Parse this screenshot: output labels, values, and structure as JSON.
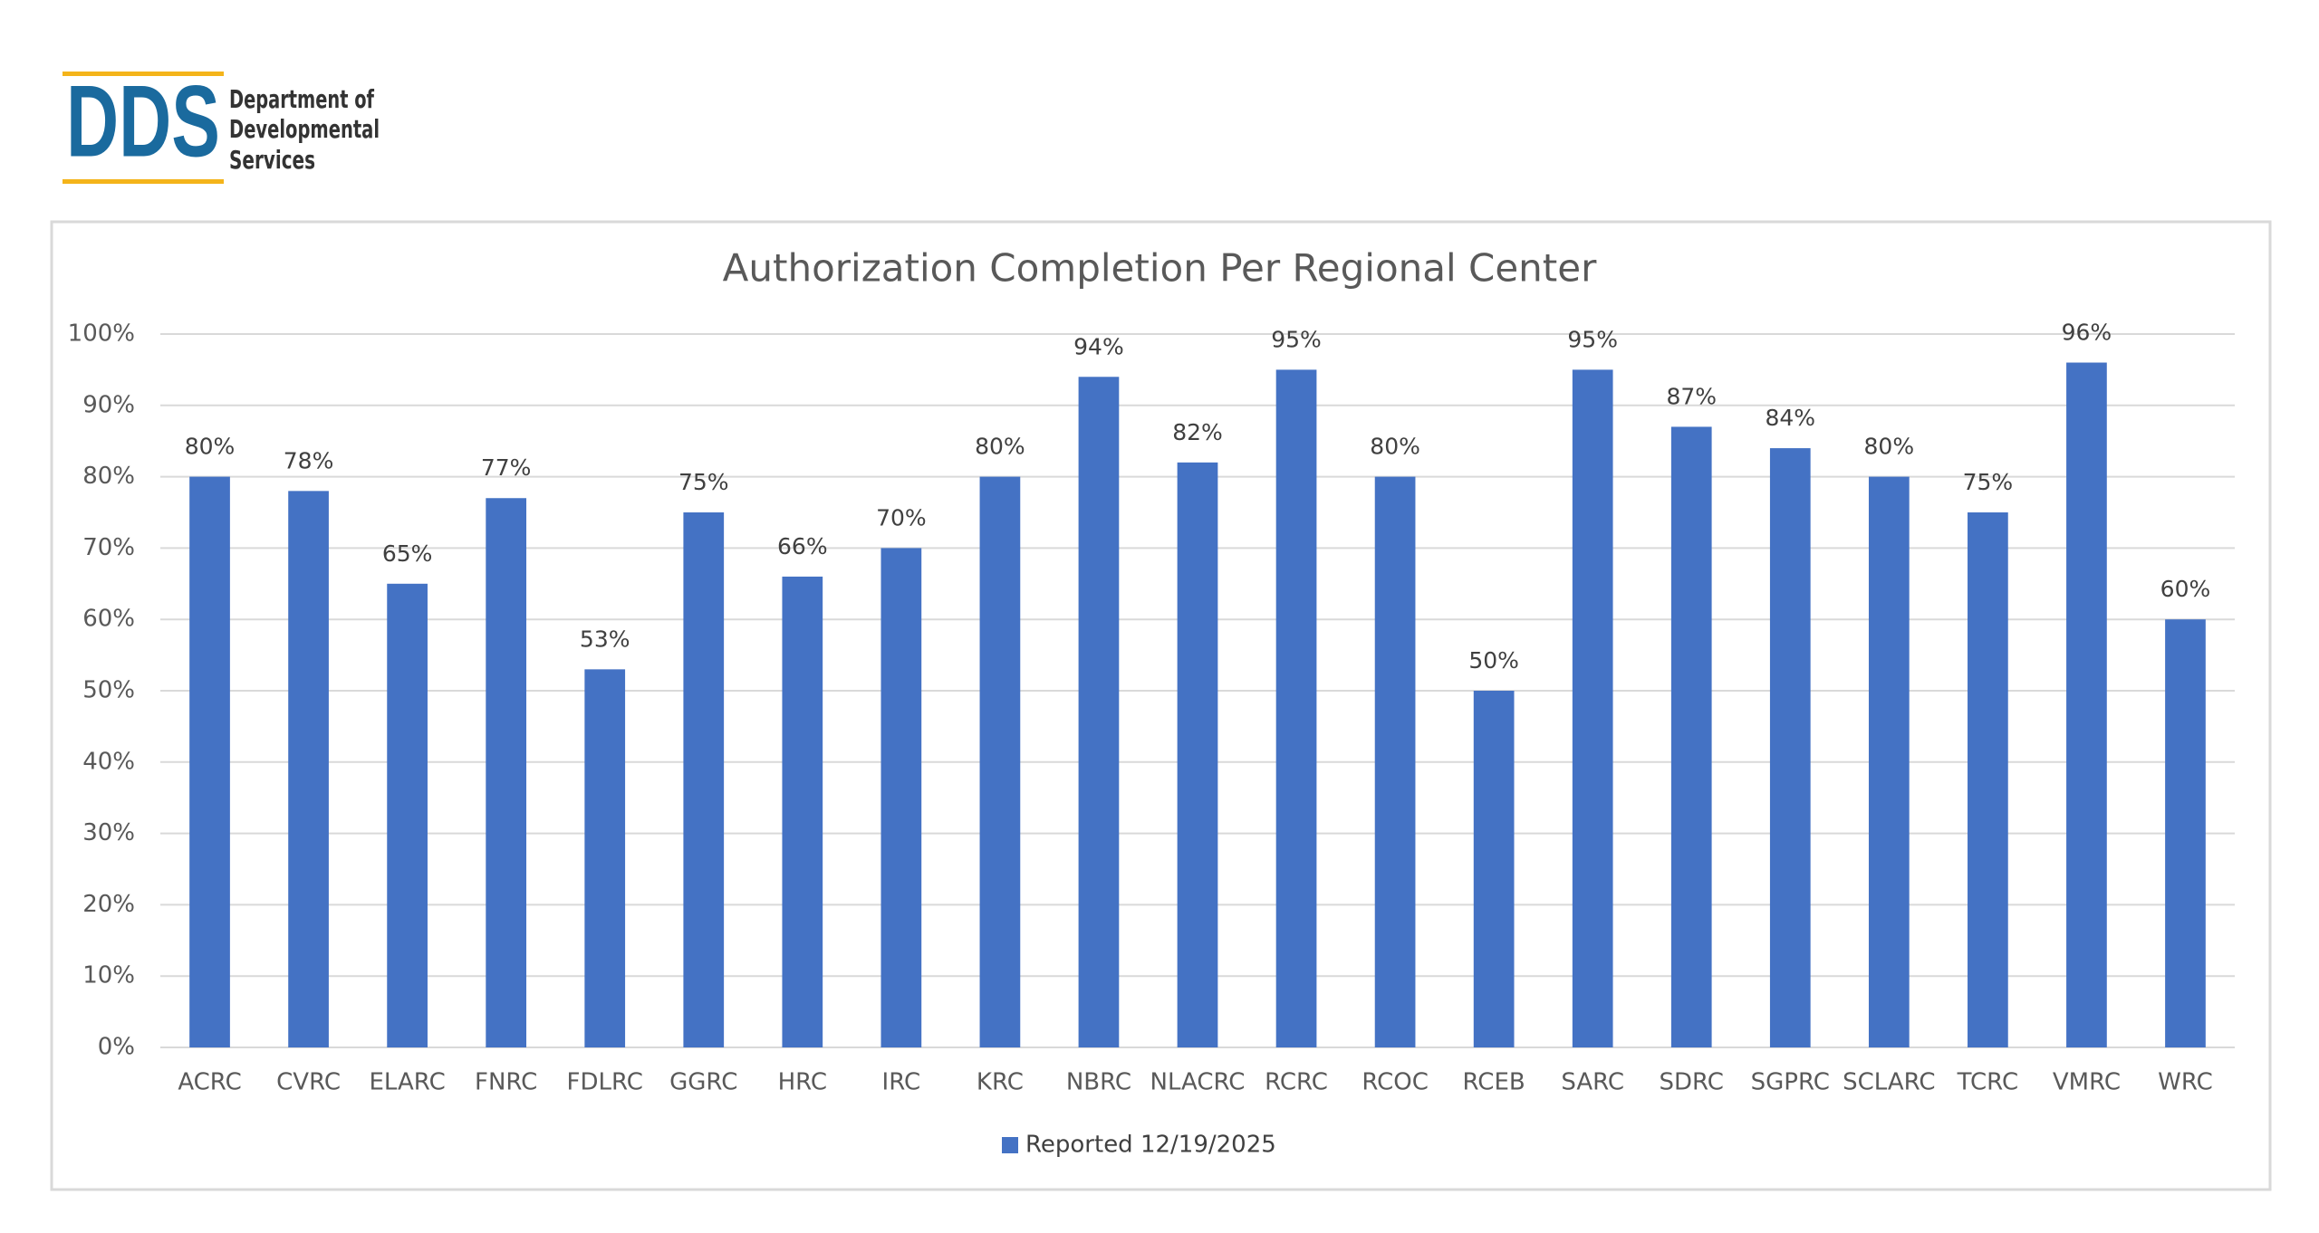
{
  "logo": {
    "mark": "DDS",
    "lines": [
      "Department of",
      "Developmental",
      "Services"
    ]
  },
  "chart_data": {
    "type": "bar",
    "title": "Authorization Completion Per Regional Center",
    "categories": [
      "ACRC",
      "CVRC",
      "ELARC",
      "FNRC",
      "FDLRC",
      "GGRC",
      "HRC",
      "IRC",
      "KRC",
      "NBRC",
      "NLACRC",
      "RCRC",
      "RCOC",
      "RCEB",
      "SARC",
      "SDRC",
      "SGPRC",
      "SCLARC",
      "TCRC",
      "VMRC",
      "WRC"
    ],
    "series": [
      {
        "name": "Reported 12/19/2025",
        "color": "#4472c4",
        "values": [
          80,
          78,
          65,
          77,
          53,
          75,
          66,
          70,
          80,
          94,
          82,
          95,
          80,
          50,
          95,
          87,
          84,
          80,
          75,
          96,
          60
        ],
        "value_labels": [
          "80%",
          "78%",
          "65%",
          "77%",
          "53%",
          "75%",
          "66%",
          "70%",
          "80%",
          "94%",
          "82%",
          "95%",
          "80%",
          "50%",
          "95%",
          "87%",
          "84%",
          "80%",
          "75%",
          "96%",
          "60%"
        ]
      }
    ],
    "ylim": [
      0,
      100
    ],
    "yticks": [
      {
        "value": 0,
        "label": "0%"
      },
      {
        "value": 10,
        "label": "10%"
      },
      {
        "value": 20,
        "label": "20%"
      },
      {
        "value": 30,
        "label": "30%"
      },
      {
        "value": 40,
        "label": "40%"
      },
      {
        "value": 50,
        "label": "50%"
      },
      {
        "value": 60,
        "label": "60%"
      },
      {
        "value": 70,
        "label": "70%"
      },
      {
        "value": 80,
        "label": "80%"
      },
      {
        "value": 90,
        "label": "90%"
      },
      {
        "value": 100,
        "label": "100%"
      }
    ],
    "grid": true,
    "legend": "bottom"
  }
}
